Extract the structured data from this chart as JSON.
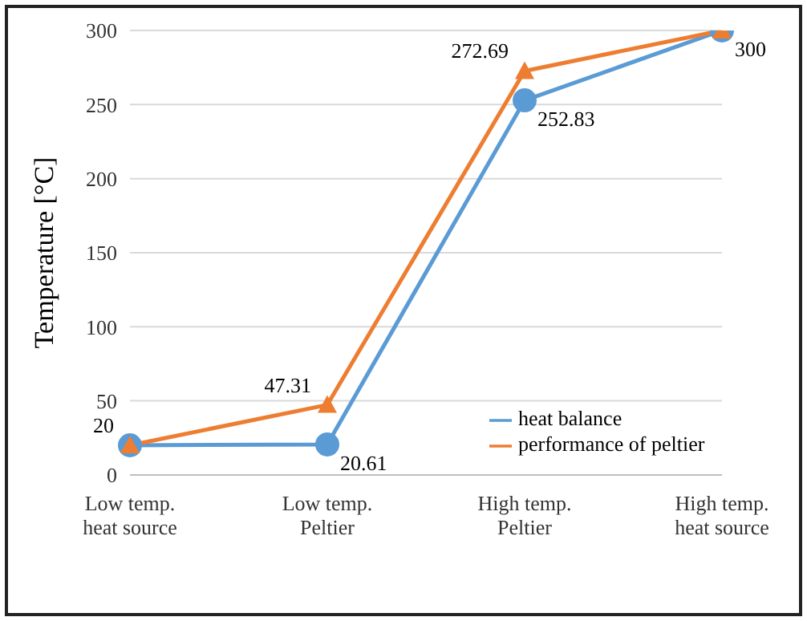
{
  "chart_data": {
    "type": "line",
    "ylabel": "Temperature [°C]",
    "categories": [
      "Low temp.\nheat source",
      "Low temp.\nPeltier",
      "High temp.\nPeltier",
      "High temp.\nheat source"
    ],
    "series": [
      {
        "name": "heat balance",
        "color": "#5b9bd5",
        "values": [
          20,
          20.61,
          252.83,
          300
        ],
        "marker": "circle",
        "value_labels": [
          null,
          "20.61",
          "252.83",
          "300"
        ]
      },
      {
        "name": "performance of peltier",
        "color": "#ed7d31",
        "values": [
          20,
          47.31,
          272.69,
          300
        ],
        "marker": "triangle",
        "value_labels": [
          "20",
          "47.31",
          "272.69",
          null
        ]
      }
    ],
    "ylim": [
      0,
      300
    ],
    "yticks": [
      0,
      50,
      100,
      150,
      200,
      250,
      300
    ],
    "grid": "y",
    "legend": "bottom right"
  }
}
